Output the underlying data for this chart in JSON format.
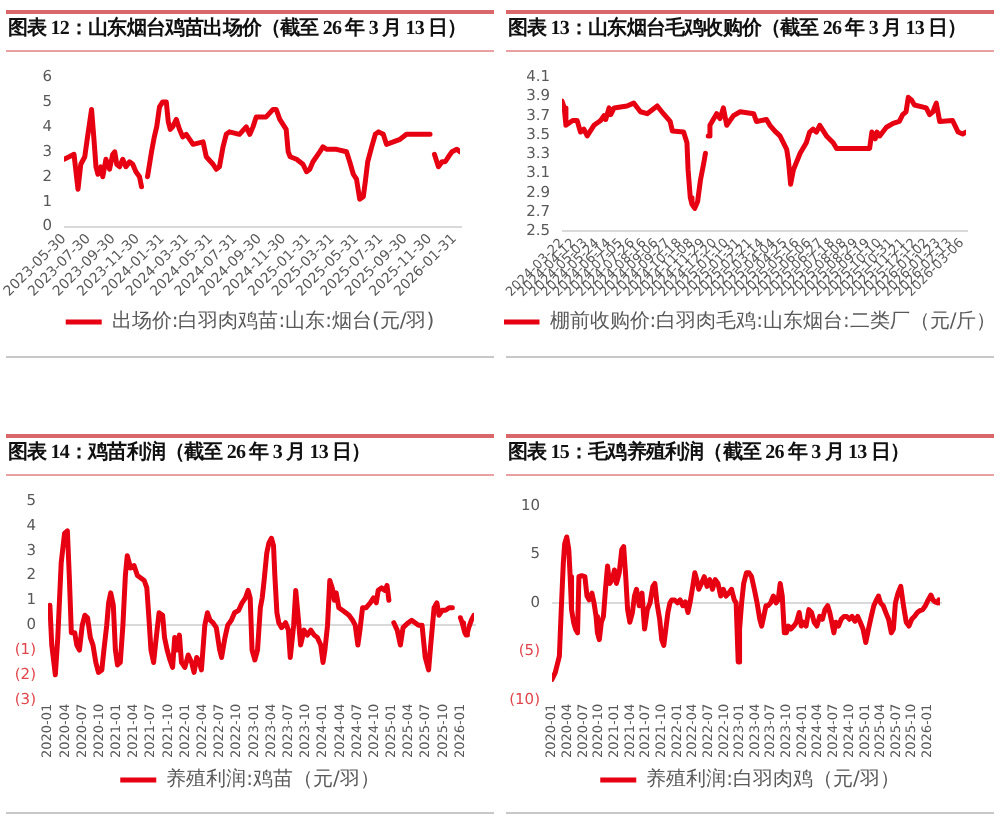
{
  "chart_data": [
    {
      "type": "line",
      "title": "图表 12：山东烟台鸡苗出场价（截至 26 年 3 月 13 日）",
      "x": [
        "2023-05-30",
        "2023-06-12",
        "2023-06-24",
        "2023-07-04",
        "2023-07-11",
        "2023-07-21",
        "2023-07-27",
        "2023-08-07",
        "2023-08-13",
        "2023-08-18",
        "2023-08-23",
        "2023-08-30",
        "2023-09-04",
        "2023-09-12",
        "2023-09-21",
        "2023-09-29",
        "2023-10-04",
        "2023-10-09",
        "2023-10-16",
        "2023-10-24",
        "2023-11-01",
        "2023-11-10",
        "2023-11-18",
        "2023-11-26",
        "2023-12-05",
        "2023-12-10",
        "2023-12-20",
        "2023-12-25",
        "2024-01-04",
        "2024-01-11",
        "2024-01-17",
        "2024-01-24",
        "2024-02-01",
        "2024-02-10",
        "2024-02-15",
        "2024-02-20",
        "2024-02-26",
        "2024-03-06",
        "2024-03-14",
        "2024-03-22",
        "2024-03-31",
        "2024-04-17",
        "2024-05-12",
        "2024-05-20",
        "2024-06-06",
        "2024-06-14",
        "2024-06-22",
        "2024-07-01",
        "2024-07-09",
        "2024-07-17",
        "2024-08-11",
        "2024-08-28",
        "2024-09-06",
        "2024-09-14",
        "2024-09-22",
        "2024-10-17",
        "2024-11-03",
        "2024-11-11",
        "2024-11-20",
        "2024-11-28",
        "2024-12-06",
        "2024-12-11",
        "2024-12-16",
        "2025-01-01",
        "2025-01-17",
        "2025-01-26",
        "2025-02-03",
        "2025-02-11",
        "2025-02-28",
        "2025-03-08",
        "2025-03-17",
        "2025-04-11",
        "2025-05-06",
        "2025-05-14",
        "2025-05-23",
        "2025-05-31",
        "2025-06-08",
        "2025-06-17",
        "2025-06-22",
        "2025-06-28",
        "2025-07-08",
        "2025-07-17",
        "2025-07-25",
        "2025-08-06",
        "2025-08-14",
        "2025-08-31",
        "2025-09-17",
        "2025-10-03",
        "2025-11-06",
        "2025-12-01",
        "2025-12-07",
        "2025-12-12",
        "2025-12-22",
        "2025-12-31",
        "2026-01-08",
        "2026-01-16",
        "2026-01-25",
        "2026-02-06",
        "2026-02-14"
      ],
      "series": [
        {
          "name": "出场价:白羽肉鸡苗:山东:烟台(元/羽)",
          "color": "#e60012",
          "values": [
            2.7,
            2.8,
            2.9,
            1.5,
            2.5,
            2.8,
            3.5,
            4.7,
            3.5,
            2.4,
            2.1,
            2.4,
            2.0,
            2.7,
            2.3,
            2.9,
            3.0,
            2.5,
            2.4,
            2.7,
            2.4,
            2.6,
            2.5,
            2.2,
            2.0,
            1.6,
            null,
            2.0,
            3.0,
            3.6,
            4.0,
            4.8,
            5.0,
            5.0,
            4.2,
            3.9,
            4.0,
            4.3,
            3.9,
            3.6,
            3.7,
            3.3,
            3.4,
            2.8,
            2.5,
            2.3,
            2.4,
            3.2,
            3.7,
            3.8,
            3.7,
            4.0,
            3.7,
            4.0,
            4.4,
            4.4,
            4.7,
            4.7,
            4.3,
            4.1,
            3.9,
            3.0,
            2.8,
            2.7,
            2.5,
            2.2,
            2.3,
            2.6,
            3.0,
            3.2,
            3.1,
            3.1,
            3.0,
            2.6,
            2.1,
            1.9,
            1.1,
            1.2,
            1.8,
            2.6,
            3.2,
            3.7,
            3.8,
            3.7,
            3.3,
            3.4,
            3.5,
            3.7,
            3.7,
            3.7,
            null,
            2.9,
            2.4,
            2.6,
            2.6,
            2.8,
            3.0,
            3.1,
            3.0
          ]
        }
      ],
      "xlim": [
        "2023-05-30",
        "2026-02-14"
      ],
      "xticks": [
        "2023-05-30",
        "2023-07-30",
        "2023-09-30",
        "2023-11-30",
        "2024-01-31",
        "2024-03-31",
        "2024-05-31",
        "2024-07-31",
        "2024-09-30",
        "2024-11-30",
        "2025-01-31",
        "2025-03-31",
        "2025-05-31",
        "2025-07-31",
        "2025-09-30",
        "2025-11-30",
        "2026-01-31"
      ],
      "ylim": [
        0,
        6
      ],
      "yticks": [
        0,
        1,
        2,
        3,
        4,
        5,
        6
      ],
      "legend": "bottom"
    },
    {
      "type": "line",
      "title": "图表 13：山东烟台毛鸡收购价（截至 26 年 3 月 13 日）",
      "x": [
        "2024-03-22",
        "2024-03-26",
        "2024-03-29",
        "2024-04-10",
        "2024-04-18",
        "2024-04-24",
        "2024-04-30",
        "2024-05-06",
        "2024-05-18",
        "2024-05-30",
        "2024-06-05",
        "2024-06-08",
        "2024-06-14",
        "2024-06-17",
        "2024-06-23",
        "2024-07-16",
        "2024-07-28",
        "2024-08-09",
        "2024-08-21",
        "2024-09-08",
        "2024-09-19",
        "2024-10-01",
        "2024-10-05",
        "2024-10-25",
        "2024-10-31",
        "2024-11-02",
        "2024-11-06",
        "2024-11-09",
        "2024-11-14",
        "2024-11-19",
        "2024-11-24",
        "2024-11-30",
        "2024-12-03",
        "2024-12-06",
        "2024-12-08",
        "2024-12-11",
        "2024-12-23",
        "2024-12-29",
        "2025-01-04",
        "2025-01-10",
        "2025-01-22",
        "2025-02-03",
        "2025-02-27",
        "2025-03-04",
        "2025-03-22",
        "2025-03-28",
        "2025-04-06",
        "2025-04-15",
        "2025-04-27",
        "2025-04-30",
        "2025-05-04",
        "2025-05-09",
        "2025-05-21",
        "2025-06-01",
        "2025-06-07",
        "2025-06-13",
        "2025-06-19",
        "2025-06-25",
        "2025-07-07",
        "2025-07-19",
        "2025-07-25",
        "2025-09-22",
        "2025-09-26",
        "2025-10-02",
        "2025-10-05",
        "2025-10-10",
        "2025-10-22",
        "2025-11-03",
        "2025-11-14",
        "2025-11-20",
        "2025-11-26",
        "2025-11-30",
        "2025-12-06",
        "2025-12-11",
        "2026-01-01",
        "2026-01-07",
        "2026-01-13",
        "2026-01-19",
        "2026-01-25",
        "2026-02-17",
        "2026-02-27",
        "2026-03-07",
        "2026-03-13"
      ],
      "series": [
        {
          "name": "棚前收购价:白羽肉毛鸡:山东烟台:二类厂（元/斤）",
          "color": "#e60012",
          "values": [
            3.85,
            3.78,
            3.6,
            3.65,
            3.65,
            3.53,
            3.56,
            3.49,
            3.6,
            3.65,
            3.7,
            3.66,
            3.78,
            3.71,
            3.78,
            3.8,
            3.83,
            3.74,
            3.72,
            3.8,
            3.72,
            3.64,
            3.54,
            3.53,
            3.42,
            3.14,
            2.85,
            2.78,
            2.74,
            2.81,
            3.03,
            3.21,
            3.31,
            null,
            3.49,
            3.6,
            3.72,
            3.67,
            3.78,
            3.6,
            3.7,
            3.74,
            3.72,
            3.64,
            3.66,
            3.6,
            3.54,
            3.49,
            3.35,
            3.24,
            2.99,
            3.14,
            3.31,
            3.42,
            3.53,
            3.56,
            3.53,
            3.6,
            3.49,
            3.42,
            3.36,
            3.36,
            3.53,
            3.46,
            3.53,
            3.49,
            3.58,
            3.62,
            3.64,
            3.71,
            3.74,
            3.89,
            3.86,
            3.81,
            3.78,
            3.71,
            3.74,
            3.83,
            3.64,
            3.65,
            3.53,
            3.51,
            3.53
          ]
        }
      ],
      "xlim": [
        "2024-03-22",
        "2026-03-13"
      ],
      "xticks": [
        "2024-03-22",
        "2024-04-12",
        "2024-05-03",
        "2024-05-24",
        "2024-06-14",
        "2024-07-05",
        "2024-07-26",
        "2024-08-16",
        "2024-09-06",
        "2024-09-27",
        "2024-10-18",
        "2024-11-08",
        "2024-11-29",
        "2024-12-20",
        "2025-01-10",
        "2025-01-31",
        "2025-02-21",
        "2025-03-14",
        "2025-04-04",
        "2025-04-25",
        "2025-05-16",
        "2025-06-06",
        "2025-06-27",
        "2025-07-18",
        "2025-08-08",
        "2025-08-29",
        "2025-09-19",
        "2025-10-10",
        "2025-10-31",
        "2025-11-21",
        "2025-12-12",
        "2026-01-02",
        "2026-01-23",
        "2026-02-13",
        "2026-03-06"
      ],
      "ylim": [
        2.5,
        4.1
      ],
      "yticks": [
        2.5,
        2.7,
        2.9,
        3.1,
        3.3,
        3.5,
        3.7,
        3.9,
        4.1
      ],
      "legend": "bottom"
    },
    {
      "type": "line",
      "title": "图表 14：鸡苗利润（截至 26 年 3 月 13 日）",
      "x": [
        "2020-01-11",
        "2020-01-21",
        "2020-02-09",
        "2020-02-22",
        "2020-03-11",
        "2020-03-29",
        "2020-04-13",
        "2020-04-23",
        "2020-05-04",
        "2020-05-22",
        "2020-06-02",
        "2020-06-16",
        "2020-07-01",
        "2020-07-15",
        "2020-07-29",
        "2020-08-13",
        "2020-08-27",
        "2020-09-11",
        "2020-09-25",
        "2020-10-13",
        "2020-10-24",
        "2020-11-08",
        "2020-11-18",
        "2020-11-29",
        "2020-12-13",
        "2020-12-24",
        "2021-01-04",
        "2021-01-19",
        "2021-02-02",
        "2021-02-15",
        "2021-02-25",
        "2021-03-15",
        "2021-04-02",
        "2021-04-20",
        "2021-05-08",
        "2021-05-26",
        "2021-06-09",
        "2021-06-20",
        "2021-07-01",
        "2021-07-15",
        "2021-07-29",
        "2021-08-13",
        "2021-09-01",
        "2021-09-11",
        "2021-09-25",
        "2021-10-10",
        "2021-10-24",
        "2021-11-04",
        "2021-11-15",
        "2021-11-29",
        "2021-12-10",
        "2021-12-28",
        "2022-01-15",
        "2022-02-02",
        "2022-02-15",
        "2022-03-01",
        "2022-03-15",
        "2022-03-26",
        "2022-04-13",
        "2022-04-27",
        "2022-05-11",
        "2022-05-26",
        "2022-06-13",
        "2022-07-01",
        "2022-07-11",
        "2022-07-29",
        "2022-08-13",
        "2022-09-01",
        "2022-09-18",
        "2022-10-10",
        "2022-10-28",
        "2022-11-15",
        "2022-11-29",
        "2022-12-10",
        "2022-12-20",
        "2023-01-04",
        "2023-01-18",
        "2023-02-02",
        "2023-02-12",
        "2023-02-22",
        "2023-03-08",
        "2023-03-19",
        "2023-04-02",
        "2023-04-13",
        "2023-04-20",
        "2023-05-01",
        "2023-05-11",
        "2023-05-26",
        "2023-06-06",
        "2023-06-16",
        "2023-07-01",
        "2023-07-11",
        "2023-07-29",
        "2023-08-09",
        "2023-08-20",
        "2023-09-04",
        "2023-09-22",
        "2023-10-10",
        "2023-10-28",
        "2023-11-15",
        "2023-12-02",
        "2023-12-20",
        "2024-01-01",
        "2024-01-11",
        "2024-01-25",
        "2024-02-06",
        "2024-02-19",
        "2024-03-01",
        "2024-03-11",
        "2024-03-25",
        "2024-04-13",
        "2024-05-01",
        "2024-05-18",
        "2024-06-06",
        "2024-06-20",
        "2024-07-04",
        "2024-07-15",
        "2024-07-29",
        "2024-08-16",
        "2024-09-08",
        "2024-09-25",
        "2024-10-10",
        "2024-10-20",
        "2024-11-08",
        "2024-11-25",
        "2024-12-06",
        "2024-12-16",
        "2024-12-26",
        "2025-01-11",
        "2025-01-29",
        "2025-02-15",
        "2025-03-01",
        "2025-03-15",
        "2025-03-29",
        "2025-04-16",
        "2025-05-04",
        "2025-05-22",
        "2025-06-10",
        "2025-06-27",
        "2025-07-15",
        "2025-07-26",
        "2025-08-13",
        "2025-08-28",
        "2025-09-08",
        "2025-09-25",
        "2025-10-13",
        "2025-11-01",
        "2025-11-18",
        "2025-12-10",
        "2025-12-31",
        "2026-01-09",
        "2026-01-16",
        "2026-01-23",
        "2026-01-30",
        "2026-02-06",
        "2026-02-13",
        "2026-02-27",
        "2026-03-06",
        "2026-03-13"
      ],
      "series": [
        {
          "name": "养殖利润:鸡苗（元/羽）",
          "color": "#e60012",
          "values": [
            0.8,
            -0.8,
            -2.0,
            -0.5,
            2.5,
            3.7,
            3.8,
            2.0,
            -0.3,
            -0.3,
            -0.8,
            -1.0,
            0.0,
            0.4,
            0.3,
            -0.5,
            -0.8,
            -1.5,
            -1.9,
            -1.8,
            -1.0,
            0.0,
            0.9,
            1.3,
            0.8,
            -1.0,
            -1.6,
            -1.5,
            0.0,
            2.0,
            2.8,
            2.3,
            2.4,
            2.0,
            1.9,
            1.8,
            1.5,
            0.3,
            -1.0,
            -1.5,
            -0.5,
            0.5,
            0.4,
            -0.5,
            -1.0,
            -1.4,
            -1.7,
            -0.5,
            -1.0,
            -0.4,
            -1.5,
            -1.7,
            -1.2,
            -1.5,
            -1.9,
            -1.3,
            -1.5,
            -1.8,
            0.0,
            0.5,
            0.2,
            0.1,
            -0.1,
            -1.0,
            -1.3,
            -0.5,
            0.0,
            0.2,
            0.5,
            0.6,
            0.9,
            1.1,
            1.4,
            1.1,
            -1.0,
            -1.4,
            -1.0,
            0.7,
            1.1,
            1.8,
            2.9,
            3.3,
            3.5,
            3.2,
            2.0,
            0.5,
            0.1,
            -0.1,
            0.0,
            0.1,
            -0.2,
            -1.3,
            0.0,
            1.4,
            0.5,
            -0.8,
            -0.2,
            -0.4,
            -0.2,
            -0.4,
            -0.5,
            -0.8,
            -1.5,
            -1.0,
            0.0,
            1.8,
            1.5,
            1.0,
            1.3,
            0.7,
            0.6,
            0.5,
            0.4,
            0.2,
            0.0,
            -0.8,
            -0.2,
            0.7,
            0.7,
            0.9,
            1.1,
            0.9,
            1.4,
            1.5,
            1.4,
            1.6,
            1.0,
            null,
            0.1,
            -0.2,
            -0.8,
            -0.1,
            0.0,
            0.1,
            0.2,
            0.1,
            0.0,
            0.0,
            -1.3,
            -1.8,
            -0.8,
            0.7,
            0.9,
            0.4,
            0.6,
            0.6,
            0.7,
            0.7,
            null,
            0.3,
            0.1,
            -0.1,
            -0.3,
            -0.4,
            -0.3,
            -0.1,
            0.2,
            0.3,
            0.4
          ]
        }
      ],
      "xlim": [
        "2020-01-01",
        "2026-03-13"
      ],
      "xticks": [
        "2020-01",
        "2020-04",
        "2020-07",
        "2020-10",
        "2021-01",
        "2021-04",
        "2021-07",
        "2021-10",
        "2022-01",
        "2022-04",
        "2022-07",
        "2022-10",
        "2023-01",
        "2023-04",
        "2023-07",
        "2023-10",
        "2024-01",
        "2024-04",
        "2024-07",
        "2024-10",
        "2025-01",
        "2025-04",
        "2025-07",
        "2025-10",
        "2026-01"
      ],
      "ylim": [
        -3,
        5
      ],
      "yticks": [
        {
          "value": -3,
          "label": "(3)"
        },
        {
          "value": -2,
          "label": "(2)"
        },
        {
          "value": -1,
          "label": "(1)"
        },
        0,
        1,
        2,
        3,
        4,
        5
      ],
      "legend": "bottom"
    },
    {
      "type": "line",
      "title": "图表 15：毛鸡养殖利润（截至 26 年 3 月 13 日）",
      "x": [
        "2020-01-01",
        "2020-01-20",
        "2020-02-13",
        "2020-02-24",
        "2020-03-07",
        "2020-03-15",
        "2020-03-27",
        "2020-04-08",
        "2020-04-16",
        "2020-04-24",
        "2020-05-06",
        "2020-05-17",
        "2020-05-29",
        "2020-06-06",
        "2020-06-22",
        "2020-07-11",
        "2020-07-23",
        "2020-08-05",
        "2020-08-21",
        "2020-09-02",
        "2020-09-14",
        "2020-09-22",
        "2020-10-03",
        "2020-10-15",
        "2020-10-27",
        "2020-11-08",
        "2020-11-20",
        "2020-12-02",
        "2020-12-18",
        "2020-12-30",
        "2021-01-11",
        "2021-01-27",
        "2021-02-11",
        "2021-02-22",
        "2021-03-06",
        "2021-03-17",
        "2021-03-30",
        "2021-04-14",
        "2021-04-26",
        "2021-05-08",
        "2021-05-24",
        "2021-06-09",
        "2021-06-24",
        "2021-07-10",
        "2021-07-26",
        "2021-08-11",
        "2021-08-23",
        "2021-09-04",
        "2021-09-20",
        "2021-10-02",
        "2021-10-14",
        "2021-10-26",
        "2021-11-07",
        "2021-11-19",
        "2021-11-30",
        "2021-12-16",
        "2022-01-02",
        "2022-01-17",
        "2022-02-02",
        "2022-02-17",
        "2022-03-04",
        "2022-03-16",
        "2022-04-01",
        "2022-04-13",
        "2022-04-24",
        "2022-05-06",
        "2022-05-22",
        "2022-06-07",
        "2022-06-23",
        "2022-07-09",
        "2022-07-25",
        "2022-08-10",
        "2022-08-26",
        "2022-09-11",
        "2022-09-26",
        "2022-10-12",
        "2022-10-28",
        "2022-11-13",
        "2022-11-29",
        "2022-12-10",
        "2022-12-22",
        "2022-12-30",
        "2023-01-11",
        "2023-01-23",
        "2023-02-08",
        "2023-02-23",
        "2023-03-10",
        "2023-03-26",
        "2023-04-11",
        "2023-04-27",
        "2023-05-08",
        "2023-05-20",
        "2023-06-02",
        "2023-06-13",
        "2023-06-29",
        "2023-07-15",
        "2023-07-31",
        "2023-08-12",
        "2023-08-24",
        "2023-09-05",
        "2023-09-17",
        "2023-09-29",
        "2023-10-10",
        "2023-10-26",
        "2023-11-11",
        "2023-11-27",
        "2023-12-13",
        "2023-12-25",
        "2024-01-06",
        "2024-01-22",
        "2024-02-07",
        "2024-02-23",
        "2024-03-09",
        "2024-03-25",
        "2024-04-10",
        "2024-04-26",
        "2024-05-11",
        "2024-05-27",
        "2024-06-08",
        "2024-06-20",
        "2024-07-02",
        "2024-07-13",
        "2024-07-29",
        "2024-08-14",
        "2024-08-30",
        "2024-09-15",
        "2024-10-01",
        "2024-10-16",
        "2024-11-02",
        "2024-11-18",
        "2024-12-03",
        "2024-12-19",
        "2025-01-04",
        "2025-01-20",
        "2025-02-05",
        "2025-02-20",
        "2025-03-07",
        "2025-03-19",
        "2025-03-31",
        "2025-04-16",
        "2025-05-01",
        "2025-05-17",
        "2025-06-02",
        "2025-06-14",
        "2025-06-26",
        "2025-07-11",
        "2025-07-27",
        "2025-08-12",
        "2025-08-28",
        "2025-09-13",
        "2025-09-29",
        "2025-10-15",
        "2025-11-01",
        "2025-11-16",
        "2025-12-02",
        "2025-12-18",
        "2026-01-03",
        "2026-01-19",
        "2026-01-31",
        "2026-02-12",
        "2026-02-28",
        "2026-03-06",
        "2026-03-13"
      ],
      "series": [
        {
          "name": "养殖利润:白羽肉鸡（元/羽）",
          "color": "#e60012",
          "values": [
            -7.9,
            -7.2,
            -5.5,
            -0.7,
            4.1,
            6.1,
            6.8,
            5.5,
            2.7,
            -0.7,
            -2.0,
            -2.7,
            -3.1,
            2.7,
            2.8,
            2.7,
            0.7,
            0.3,
            1.0,
            0.0,
            -1.4,
            -3.1,
            -3.8,
            -2.0,
            -1.4,
            1.4,
            3.8,
            2.0,
            2.4,
            3.4,
            2.0,
            3.1,
            5.5,
            5.8,
            2.7,
            -0.7,
            -2.0,
            -1.0,
            0.7,
            1.4,
            -0.3,
            1.0,
            -2.7,
            -0.7,
            0.0,
            1.7,
            2.0,
            0.0,
            -1.7,
            -3.8,
            -4.4,
            -2.7,
            -1.0,
            0.0,
            0.3,
            0.3,
            0.0,
            0.3,
            -0.3,
            0.1,
            -1.0,
            0.0,
            1.7,
            3.1,
            2.4,
            1.4,
            2.0,
            2.7,
            1.7,
            2.4,
            1.4,
            2.4,
            2.0,
            0.7,
            1.4,
            0.7,
            1.0,
            1.4,
            0.3,
            0.0,
            -6.1,
            -2.7,
            0.0,
            2.0,
            3.1,
            3.1,
            2.7,
            1.4,
            0.0,
            -1.7,
            -2.4,
            -1.4,
            -0.3,
            -0.3,
            0.0,
            0.7,
            0.0,
            0.3,
            2.0,
            0.7,
            -3.1,
            -3.1,
            -2.4,
            -2.7,
            -2.4,
            -2.0,
            -1.0,
            -2.4,
            -2.0,
            -2.4,
            -0.7,
            -1.0,
            -2.0,
            -2.4,
            -1.4,
            -1.7,
            -0.7,
            -0.3,
            -1.0,
            -2.0,
            -3.1,
            -2.0,
            -2.4,
            -1.7,
            -1.4,
            -1.4,
            -1.7,
            -1.4,
            -1.9,
            -1.4,
            -2.0,
            -2.7,
            -4.1,
            -2.7,
            -1.4,
            -0.3,
            0.3,
            0.7,
            0.0,
            -0.3,
            -1.0,
            -1.7,
            -3.1,
            -2.7,
            0.0,
            1.0,
            1.7,
            -0.3,
            -2.0,
            -2.4,
            -1.7,
            -1.4,
            -1.0,
            -0.8,
            -0.7,
            -0.3,
            0.3,
            0.8,
            0.3,
            0.1,
            0.0,
            0.3,
            0.0
          ]
        }
      ],
      "xlim": [
        "2020-01-01",
        "2026-03-13"
      ],
      "xticks": [
        "2020-01",
        "2020-04",
        "2020-07",
        "2020-10",
        "2021-01",
        "2021-04",
        "2021-07",
        "2021-10",
        "2022-01",
        "2022-04",
        "2022-07",
        "2022-10",
        "2023-01",
        "2023-04",
        "2023-07",
        "2023-10",
        "2024-01",
        "2024-04",
        "2024-07",
        "2024-10",
        "2025-01",
        "2025-04",
        "2025-07",
        "2025-10",
        "2026-01"
      ],
      "ylim": [
        -10,
        10
      ],
      "yticks": [
        {
          "value": -10,
          "label": "(10)"
        },
        {
          "value": -5,
          "label": "(5)"
        },
        0,
        5,
        10
      ],
      "legend": "bottom"
    }
  ]
}
